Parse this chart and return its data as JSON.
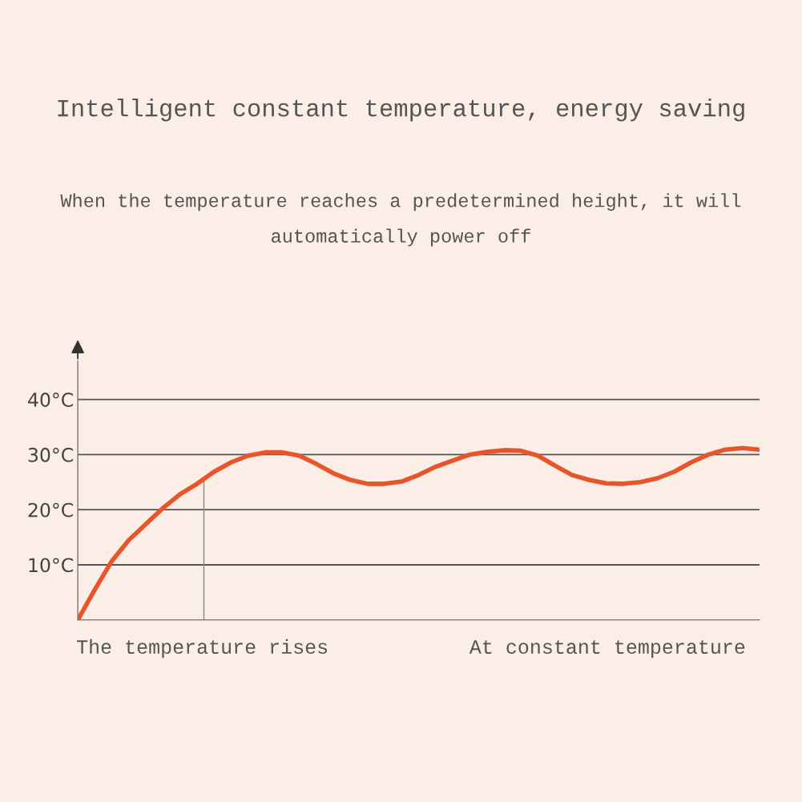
{
  "chart_data": {
    "type": "line",
    "title": "Intelligent constant temperature, energy saving",
    "subtitle": "When the temperature reaches a predetermined height, it will automatically power off",
    "categories": [
      null,
      null,
      null,
      null,
      null,
      null,
      null,
      null,
      null,
      null,
      null,
      null,
      null,
      null,
      null,
      null,
      null,
      null,
      null,
      null,
      null,
      null,
      null,
      null,
      null,
      null,
      null,
      null,
      null,
      null,
      null,
      null,
      null,
      null,
      null,
      null,
      null,
      null,
      null,
      null,
      null
    ],
    "series": [
      {
        "color": "#e8552a",
        "values": [
          0,
          5.5,
          10.7,
          14.5,
          17.4,
          20.3,
          22.8,
          24.7,
          26.9,
          28.6,
          29.8,
          30.4,
          30.4,
          29.8,
          28.3,
          26.6,
          25.4,
          24.7,
          24.7,
          25.1,
          26.3,
          27.8,
          28.9,
          30,
          30.5,
          30.8,
          30.7,
          29.8,
          28,
          26.3,
          25.4,
          24.8,
          24.7,
          25,
          25.7,
          26.9,
          28.6,
          30,
          30.9,
          31.2,
          30.9
        ]
      }
    ],
    "ylim": [
      0,
      47
    ],
    "yticks": [
      {
        "value": 10,
        "label": "10°C"
      },
      {
        "value": 20,
        "label": "20°C"
      },
      {
        "value": 30,
        "label": "30°C"
      },
      {
        "value": 40,
        "label": "40°C"
      }
    ],
    "grid": "y",
    "tick_labels": "y",
    "marker": "none",
    "line_style": "solid",
    "annotations": [
      "The temperature rises",
      "At constant temperature"
    ]
  }
}
